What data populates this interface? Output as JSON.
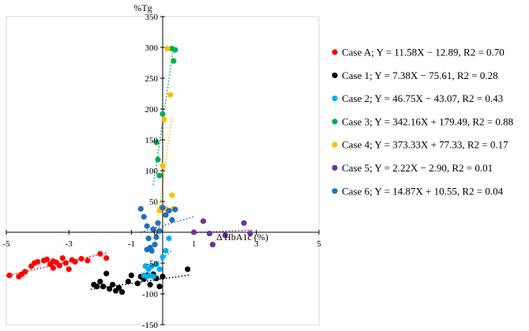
{
  "chart_data": {
    "type": "scatter",
    "title": "",
    "xlabel": "Δ HbA1c (%)",
    "ylabel": "%Tg",
    "xlim": [
      -5,
      5
    ],
    "ylim": [
      -150,
      350
    ],
    "xticks": [
      -5,
      -3,
      -1,
      1,
      3,
      5
    ],
    "yticks": [
      -150,
      -100,
      -50,
      0,
      50,
      100,
      150,
      200,
      250,
      300,
      350
    ],
    "grid": false,
    "legend_position": "right",
    "series": [
      {
        "name": "Case A",
        "label": "Case A; Y = 11.58X − 12.89, R2 = 0.70",
        "color": "#ff0000",
        "x": [
          -4.9,
          -4.6,
          -4.5,
          -4.4,
          -4.2,
          -4.1,
          -4.0,
          -3.8,
          -3.7,
          -3.6,
          -3.5,
          -3.5,
          -3.4,
          -3.3,
          -3.2,
          -3.1,
          -3.0,
          -2.9,
          -2.8,
          -2.6,
          -2.4,
          -2.0,
          -1.8
        ],
        "y": [
          -70,
          -72,
          -68,
          -64,
          -55,
          -50,
          -48,
          -46,
          -44,
          -52,
          -47,
          -58,
          -49,
          -54,
          -42,
          -50,
          -60,
          -45,
          -48,
          -43,
          -46,
          -35,
          -42
        ],
        "trend": {
          "x": [
            -5.0,
            -1.8
          ],
          "y": [
            -70.8,
            -33.7
          ]
        }
      },
      {
        "name": "Case 1",
        "label": "Case 1; Y = 7.38X − 75.61, R2 = 0.28",
        "color": "#000000",
        "x": [
          -2.2,
          -2.1,
          -2.0,
          -1.9,
          -1.8,
          -1.7,
          -1.6,
          -1.5,
          -1.4,
          -1.3,
          -1.1,
          -1.0,
          -0.8,
          -0.7,
          -0.6,
          -0.5,
          -0.4,
          -0.3,
          -0.2,
          -0.1,
          0.0,
          0.8
        ],
        "y": [
          -85,
          -88,
          -80,
          -88,
          -67,
          -92,
          -85,
          -95,
          -90,
          -97,
          -80,
          -70,
          -83,
          -72,
          -76,
          -70,
          -85,
          -68,
          -75,
          -88,
          -72,
          -60
        ],
        "trend": {
          "x": [
            -2.3,
            0.9
          ],
          "y": [
            -92.6,
            -69.0
          ]
        }
      },
      {
        "name": "Case 2",
        "label": "Case 2; Y = 46.75X − 43.07, R2 = 0.43",
        "color": "#00b0f0",
        "x": [
          -0.6,
          -0.55,
          -0.5,
          -0.45,
          -0.4,
          -0.35,
          -0.3,
          -0.2,
          -0.1,
          0.0,
          0.1,
          0.2
        ],
        "y": [
          -70,
          -55,
          -72,
          -60,
          -70,
          -55,
          -72,
          -52,
          -60,
          -40,
          -30,
          -10
        ],
        "trend": {
          "x": [
            -0.65,
            0.3
          ],
          "y": [
            -73.5,
            -29.0
          ]
        }
      },
      {
        "name": "Case 3",
        "label": "Case 3; Y = 342.16X + 179.49, R2 = 0.88",
        "color": "#00b050",
        "x": [
          -0.2,
          -0.15,
          -0.1,
          0.0,
          0.3,
          0.35,
          0.4
        ],
        "y": [
          146,
          118,
          92,
          192,
          298,
          278,
          296
        ],
        "trend": {
          "x": [
            -0.3,
            0.35
          ],
          "y": [
            76.8,
            299.3
          ]
        }
      },
      {
        "name": "Case 4",
        "label": "Case 4; Y = 373.33X + 77.33, R2 = 0.17",
        "color": "#ffc000",
        "x": [
          -0.1,
          -0.05,
          0.0,
          0.05,
          0.1,
          0.15,
          0.25,
          0.3,
          0.35
        ],
        "y": [
          35,
          40,
          108,
          183,
          38,
          298,
          223,
          60,
          38
        ],
        "trend": {
          "x": [
            -0.3,
            0.3
          ],
          "y": [
            -34.7,
            189.3
          ]
        }
      },
      {
        "name": "Case 5",
        "label": "Case 5; Y = 2.22X − 2.90, R2 = 0.01",
        "color": "#7030a0",
        "x": [
          1.0,
          1.3,
          1.5,
          1.6,
          2.0,
          2.6,
          2.8
        ],
        "y": [
          0,
          18,
          -2,
          -20,
          -5,
          15,
          -2
        ],
        "trend": {
          "x": [
            0.9,
            2.9
          ],
          "y": [
            -0.9,
            3.5
          ]
        }
      },
      {
        "name": "Case 6",
        "label": "Case 6; Y = 14.87X + 10.55, R2 = 0.04",
        "color": "#1f6fbf",
        "x": [
          -0.7,
          -0.6,
          -0.5,
          -0.45,
          -0.4,
          -0.35,
          -0.3,
          -0.25,
          -0.2,
          -0.15,
          -0.1,
          0.0,
          0.1,
          0.2,
          0.3,
          0.4,
          -0.5
        ],
        "y": [
          38,
          25,
          10,
          -10,
          -25,
          -30,
          5,
          -20,
          -8,
          15,
          2,
          40,
          28,
          35,
          20,
          37,
          -28
        ],
        "trend": {
          "x": [
            -0.7,
            1.0
          ],
          "y": [
            0.1,
            25.4
          ]
        }
      }
    ]
  }
}
